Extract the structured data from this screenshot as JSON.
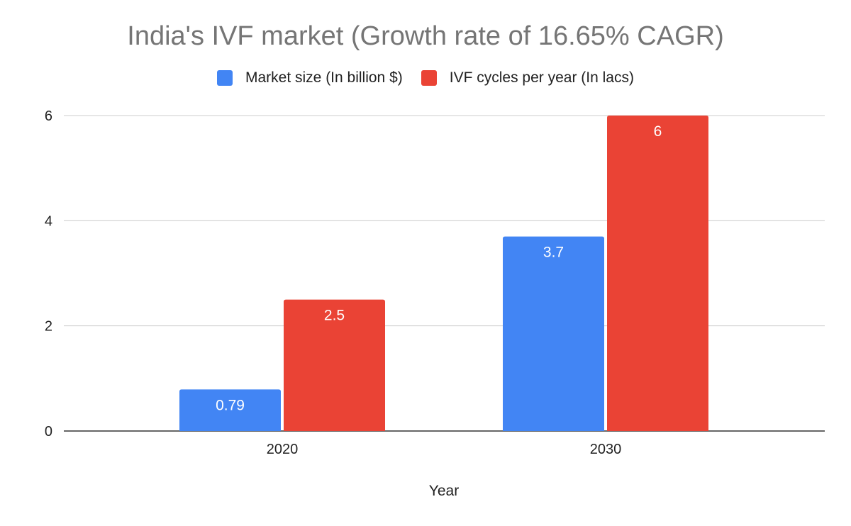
{
  "chart_data": {
    "type": "bar",
    "title": "India's IVF market (Growth rate of 16.65% CAGR)",
    "xlabel": "Year",
    "ylabel": "",
    "categories": [
      "2020",
      "2030"
    ],
    "series": [
      {
        "name": "Market size (In billion $)",
        "values": [
          0.79,
          3.7
        ],
        "labels": [
          "0.79",
          "3.7"
        ],
        "color": "#4285f4"
      },
      {
        "name": "IVF cycles per year (In lacs)",
        "values": [
          2.5,
          6
        ],
        "labels": [
          "2.5",
          "6"
        ],
        "color": "#ea4335"
      }
    ],
    "ylim": [
      0,
      6
    ],
    "yticks": [
      "0",
      "2",
      "4",
      "6"
    ],
    "grid": true,
    "legend_position": "top-center"
  }
}
